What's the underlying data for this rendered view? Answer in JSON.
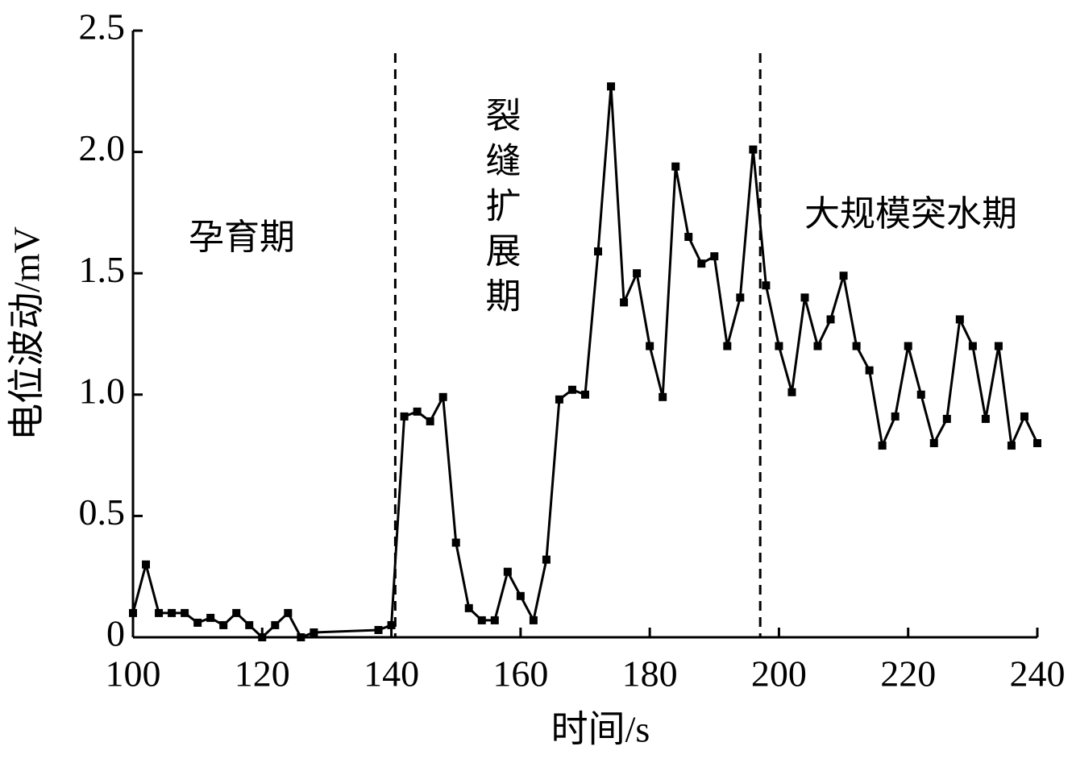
{
  "chart_data": {
    "type": "line",
    "xlabel": "时间/s",
    "ylabel": "电位波动/mV",
    "x": [
      100,
      102,
      104,
      106,
      108,
      110,
      112,
      114,
      116,
      118,
      120,
      122,
      124,
      126,
      128,
      138,
      140,
      142,
      144,
      146,
      148,
      150,
      152,
      154,
      156,
      158,
      160,
      162,
      164,
      166,
      168,
      170,
      172,
      174,
      176,
      178,
      180,
      182,
      184,
      186,
      188,
      190,
      192,
      194,
      196,
      198,
      200,
      202,
      204,
      206,
      208,
      210,
      212,
      214,
      216,
      218,
      220,
      222,
      224,
      226,
      228,
      230,
      232,
      234,
      236,
      238,
      240
    ],
    "series": [
      {
        "name": "电位波动",
        "color": "#000000",
        "values": [
          0.1,
          0.3,
          0.1,
          0.1,
          0.1,
          0.06,
          0.08,
          0.05,
          0.1,
          0.05,
          0.0,
          0.05,
          0.1,
          0.0,
          0.02,
          0.03,
          0.05,
          0.91,
          0.93,
          0.89,
          0.99,
          0.39,
          0.12,
          0.07,
          0.07,
          0.27,
          0.17,
          0.07,
          0.32,
          0.98,
          1.02,
          1.0,
          1.59,
          2.27,
          1.38,
          1.5,
          1.2,
          0.99,
          1.94,
          1.65,
          1.54,
          1.57,
          1.2,
          1.4,
          2.01,
          1.45,
          1.2,
          1.01,
          1.4,
          1.2,
          1.31,
          1.49,
          1.2,
          1.1,
          0.79,
          0.91,
          1.2,
          1.0,
          0.8,
          0.9,
          1.31,
          1.2,
          0.9,
          1.2,
          0.79,
          0.91,
          0.8
        ]
      }
    ],
    "xlim": [
      100,
      240
    ],
    "ylim": [
      0,
      2.5
    ],
    "xticks": [
      100,
      120,
      140,
      160,
      180,
      200,
      220,
      240
    ],
    "yticks": [
      0,
      0.5,
      {
        "value": 1,
        "label": "1.0"
      },
      1.5,
      {
        "value": 2,
        "label": "2.0"
      },
      2.5
    ],
    "stage_boundaries": [
      140.6,
      197.1
    ],
    "annotations": [
      "孕育期",
      "裂缝扩展期",
      "大规模突水期"
    ]
  }
}
